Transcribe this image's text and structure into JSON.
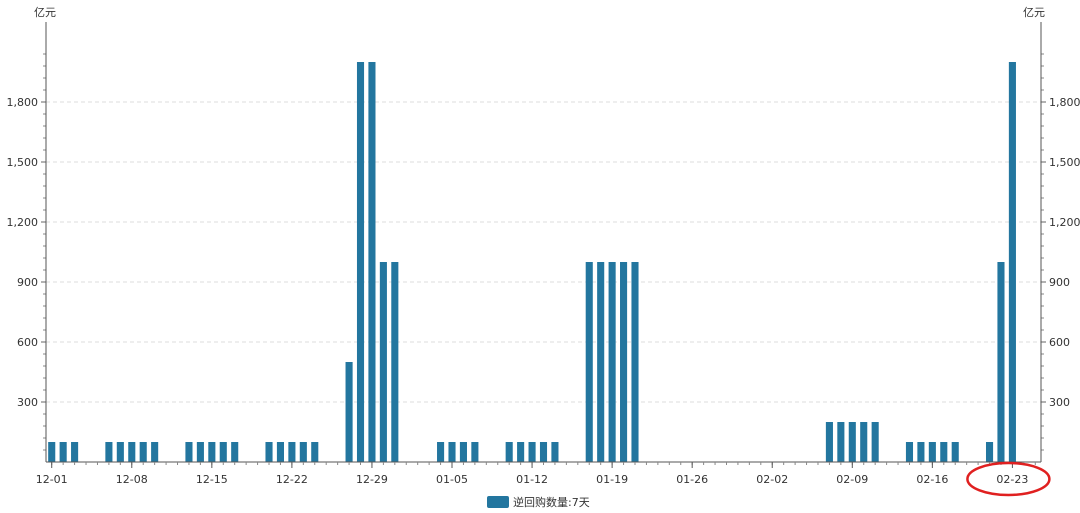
{
  "chart_data": {
    "type": "bar",
    "y_unit_left": "亿元",
    "y_unit_right": "亿元",
    "ylim": [
      0,
      2100
    ],
    "yticks": [
      300,
      600,
      900,
      1200,
      1500,
      1800
    ],
    "ytick_labels": [
      "300",
      "600",
      "900",
      "1,200",
      "1,500",
      "1,800"
    ],
    "grid": "horizontal dashed",
    "legend_position": "bottom-center",
    "x_start_date": "12-01",
    "x_end_date": "02-25",
    "xtick_labels": [
      "12-01",
      "12-08",
      "12-15",
      "12-22",
      "12-29",
      "01-05",
      "01-12",
      "01-19",
      "01-26",
      "02-02",
      "02-09",
      "02-16",
      "02-23"
    ],
    "series": [
      {
        "name": "逆回购数量:7天",
        "color": "#23769f",
        "points": [
          {
            "x": "12-01",
            "y": 100
          },
          {
            "x": "12-02",
            "y": 100
          },
          {
            "x": "12-03",
            "y": 100
          },
          {
            "x": "12-06",
            "y": 100
          },
          {
            "x": "12-07",
            "y": 100
          },
          {
            "x": "12-08",
            "y": 100
          },
          {
            "x": "12-09",
            "y": 100
          },
          {
            "x": "12-10",
            "y": 100
          },
          {
            "x": "12-13",
            "y": 100
          },
          {
            "x": "12-14",
            "y": 100
          },
          {
            "x": "12-15",
            "y": 100
          },
          {
            "x": "12-16",
            "y": 100
          },
          {
            "x": "12-17",
            "y": 100
          },
          {
            "x": "12-20",
            "y": 100
          },
          {
            "x": "12-21",
            "y": 100
          },
          {
            "x": "12-22",
            "y": 100
          },
          {
            "x": "12-23",
            "y": 100
          },
          {
            "x": "12-24",
            "y": 100
          },
          {
            "x": "12-27",
            "y": 500
          },
          {
            "x": "12-28",
            "y": 2000
          },
          {
            "x": "12-29",
            "y": 2000
          },
          {
            "x": "12-30",
            "y": 1000
          },
          {
            "x": "12-31",
            "y": 1000
          },
          {
            "x": "01-04",
            "y": 100
          },
          {
            "x": "01-05",
            "y": 100
          },
          {
            "x": "01-06",
            "y": 100
          },
          {
            "x": "01-07",
            "y": 100
          },
          {
            "x": "01-10",
            "y": 100
          },
          {
            "x": "01-11",
            "y": 100
          },
          {
            "x": "01-12",
            "y": 100
          },
          {
            "x": "01-13",
            "y": 100
          },
          {
            "x": "01-14",
            "y": 100
          },
          {
            "x": "01-17",
            "y": 1000
          },
          {
            "x": "01-18",
            "y": 1000
          },
          {
            "x": "01-19",
            "y": 1000
          },
          {
            "x": "01-20",
            "y": 1000
          },
          {
            "x": "01-21",
            "y": 1000
          },
          {
            "x": "02-07",
            "y": 200
          },
          {
            "x": "02-08",
            "y": 200
          },
          {
            "x": "02-09",
            "y": 200
          },
          {
            "x": "02-10",
            "y": 200
          },
          {
            "x": "02-11",
            "y": 200
          },
          {
            "x": "02-14",
            "y": 100
          },
          {
            "x": "02-15",
            "y": 100
          },
          {
            "x": "02-16",
            "y": 100
          },
          {
            "x": "02-17",
            "y": 100
          },
          {
            "x": "02-18",
            "y": 100
          },
          {
            "x": "02-21",
            "y": 100
          },
          {
            "x": "02-22",
            "y": 1000
          },
          {
            "x": "02-23",
            "y": 2000
          }
        ]
      }
    ],
    "annotations": [
      {
        "type": "ellipse",
        "target": "02-23",
        "color": "#e02020"
      }
    ]
  }
}
